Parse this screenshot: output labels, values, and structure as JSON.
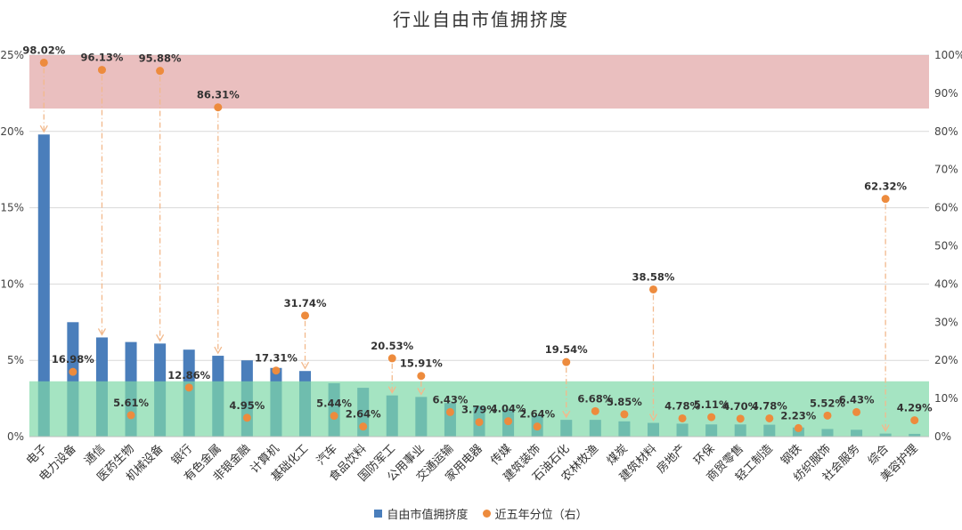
{
  "chart_data": {
    "type": "bar",
    "title": "行业自由市值拥挤度",
    "categories": [
      "电子",
      "电力设备",
      "通信",
      "医药生物",
      "机械设备",
      "银行",
      "有色金属",
      "非银金融",
      "计算机",
      "基础化工",
      "汽车",
      "食品饮料",
      "国防军工",
      "公用事业",
      "交通运输",
      "家用电器",
      "传媒",
      "建筑装饰",
      "石油石化",
      "农林牧渔",
      "煤炭",
      "建筑材料",
      "房地产",
      "环保",
      "商贸零售",
      "轻工制造",
      "钢铁",
      "纺织服饰",
      "社会服务",
      "综合",
      "美容护理"
    ],
    "series": [
      {
        "name": "自由市值拥挤度",
        "type": "bar",
        "axis": "left",
        "color": "#4a7ebb",
        "values": [
          19.8,
          7.5,
          6.5,
          6.2,
          6.1,
          5.7,
          5.3,
          5.0,
          4.5,
          4.3,
          3.5,
          3.2,
          2.7,
          2.6,
          2.2,
          2.0,
          1.8,
          1.4,
          1.1,
          1.1,
          1.0,
          0.9,
          0.85,
          0.8,
          0.8,
          0.78,
          0.6,
          0.5,
          0.45,
          0.2,
          0.18
        ]
      },
      {
        "name": "近五年分位（右）",
        "type": "scatter",
        "axis": "right",
        "color": "#ed8b3d",
        "values": [
          98.02,
          16.98,
          96.13,
          5.61,
          95.88,
          12.86,
          86.31,
          4.95,
          17.31,
          31.74,
          5.44,
          2.64,
          20.53,
          15.91,
          6.43,
          3.79,
          4.04,
          2.64,
          19.54,
          6.68,
          5.85,
          38.58,
          4.78,
          5.11,
          4.7,
          4.78,
          2.23,
          5.52,
          6.43,
          62.32,
          4.29
        ],
        "labels": [
          "98.02%",
          "16.98%",
          "96.13%",
          "5.61%",
          "95.88%",
          "12.86%",
          "86.31%",
          "4.95%",
          "17.31%",
          "31.74%",
          "5.44%",
          "2.64%",
          "20.53%",
          "15.91%",
          "6.43%",
          "3.79%",
          "4.04%",
          "2.64%",
          "19.54%",
          "6.68%",
          "5.85%",
          "38.58%",
          "4.78%",
          "5.11%",
          "4.70%",
          "4.78%",
          "2.23%",
          "5.52%",
          "6.43%",
          "62.32%",
          "4.29%"
        ]
      }
    ],
    "arrows_from_dot_to_bar": [
      "电子",
      "通信",
      "机械设备",
      "有色金属",
      "基础化工",
      "国防军工",
      "公用事业",
      "石油石化",
      "建筑材料",
      "综合"
    ],
    "y_left": {
      "min": 0,
      "max": 25,
      "ticks": [
        "0%",
        "5%",
        "10%",
        "15%",
        "20%",
        "25%"
      ]
    },
    "y_right": {
      "min": 0,
      "max": 100,
      "ticks": [
        "0%",
        "10%",
        "20%",
        "30%",
        "40%",
        "50%",
        "60%",
        "70%",
        "80%",
        "90%",
        "100%"
      ]
    },
    "bands": [
      {
        "name": "high",
        "from_pct": 86,
        "to_pct": 100,
        "color": "#e3a9a9"
      },
      {
        "name": "low",
        "from_pct": 0,
        "to_pct": 14.5,
        "color": "#7fd8a8"
      }
    ],
    "grid": true,
    "legend_position": "bottom"
  }
}
